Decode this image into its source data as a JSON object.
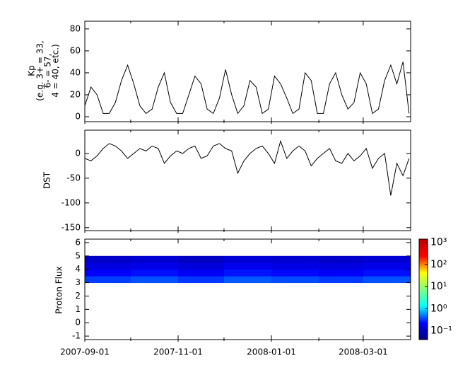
{
  "chart_data": [
    {
      "type": "line",
      "ylabel": [
        "Kp",
        "(e.g. 3+ = 33,",
        "6- = 57,",
        "4 = 40, etc.)"
      ],
      "ylim": [
        -4.5,
        87
      ],
      "yticks": [
        0,
        20,
        40,
        60,
        80
      ],
      "x": [
        "2007-09-01",
        "2007-09-05",
        "2007-09-09",
        "2007-09-13",
        "2007-09-17",
        "2007-09-21",
        "2007-09-25",
        "2007-09-29",
        "2007-10-03",
        "2007-10-07",
        "2007-10-11",
        "2007-10-15",
        "2007-10-19",
        "2007-10-23",
        "2007-10-27",
        "2007-10-31",
        "2007-11-04",
        "2007-11-08",
        "2007-11-12",
        "2007-11-16",
        "2007-11-20",
        "2007-11-24",
        "2007-11-28",
        "2007-12-02",
        "2007-12-06",
        "2007-12-10",
        "2007-12-14",
        "2007-12-18",
        "2007-12-22",
        "2007-12-26",
        "2007-12-30",
        "2008-01-03",
        "2008-01-07",
        "2008-01-11",
        "2008-01-15",
        "2008-01-19",
        "2008-01-23",
        "2008-01-27",
        "2008-01-31",
        "2008-02-04",
        "2008-02-08",
        "2008-02-12",
        "2008-02-16",
        "2008-02-20",
        "2008-02-24",
        "2008-02-28",
        "2008-03-03",
        "2008-03-07",
        "2008-03-11",
        "2008-03-15",
        "2008-03-19",
        "2008-03-23",
        "2008-03-27",
        "2008-03-31"
      ],
      "series": [
        {
          "color": "#000000",
          "values": [
            10,
            27,
            20,
            3,
            3,
            13,
            33,
            47,
            30,
            10,
            3,
            7,
            27,
            40,
            13,
            3,
            3,
            20,
            37,
            30,
            7,
            3,
            17,
            43,
            20,
            3,
            10,
            33,
            27,
            3,
            7,
            37,
            30,
            17,
            3,
            7,
            40,
            33,
            3,
            3,
            30,
            40,
            20,
            7,
            13,
            40,
            30,
            3,
            7,
            33,
            47,
            30,
            50,
            3
          ]
        }
      ]
    },
    {
      "type": "line",
      "ylabel": [
        "DST"
      ],
      "ylim": [
        -156,
        47
      ],
      "yticks": [
        0,
        -50,
        -100,
        -150
      ],
      "series": [
        {
          "color": "#000000",
          "values": [
            -10,
            -15,
            -5,
            10,
            20,
            15,
            5,
            -10,
            0,
            10,
            5,
            15,
            10,
            -20,
            -5,
            5,
            0,
            10,
            15,
            -10,
            -5,
            15,
            20,
            10,
            5,
            -40,
            -15,
            0,
            10,
            15,
            0,
            -20,
            25,
            -10,
            5,
            15,
            5,
            -25,
            -10,
            0,
            10,
            -15,
            -20,
            0,
            -15,
            -5,
            10,
            -30,
            -10,
            0,
            -85,
            -20,
            -45,
            -10
          ]
        }
      ]
    },
    {
      "type": "heatmap",
      "ylabel": [
        "Proton Flux"
      ],
      "ylim": [
        -1.26,
        6.26
      ],
      "yticks": [
        6,
        5,
        4,
        3,
        2,
        1,
        0,
        -1
      ],
      "xlim": [
        "2007-09-01",
        "2008-04-01"
      ],
      "xticks": [
        "2007-09-01",
        "2007-11-01",
        "2008-01-01",
        "2008-03-01"
      ],
      "xminorticks": [
        "2007-10-01",
        "2007-12-01",
        "2008-02-01"
      ],
      "x_edges": [
        "2007-09-01",
        "2007-10-01",
        "2007-11-01",
        "2007-12-01",
        "2008-01-01",
        "2008-02-01",
        "2008-03-01",
        "2008-04-01"
      ],
      "y_edges": [
        3,
        3.5,
        4,
        4.5,
        5
      ],
      "values": [
        [
          0.35,
          0.4,
          0.33,
          0.42,
          0.38,
          0.34,
          0.4
        ],
        [
          0.22,
          0.25,
          0.2,
          0.26,
          0.24,
          0.21,
          0.25
        ],
        [
          0.15,
          0.17,
          0.14,
          0.18,
          0.16,
          0.15,
          0.17
        ],
        [
          0.11,
          0.12,
          0.1,
          0.13,
          0.12,
          0.11,
          0.12
        ]
      ],
      "clim": [
        0.04,
        1400
      ],
      "log_color": true,
      "colormap": [
        "#00007f",
        "#0000ff",
        "#00ffff",
        "#7fff7f",
        "#ffff00",
        "#ff0000",
        "#c00000"
      ],
      "cticks": [
        {
          "value": 1000,
          "label": "10³"
        },
        {
          "value": 100,
          "label": "10²"
        },
        {
          "value": 10,
          "label": "10¹"
        },
        {
          "value": 1,
          "label": "10⁰"
        },
        {
          "value": 0.1,
          "label": "10⁻¹"
        }
      ]
    }
  ]
}
